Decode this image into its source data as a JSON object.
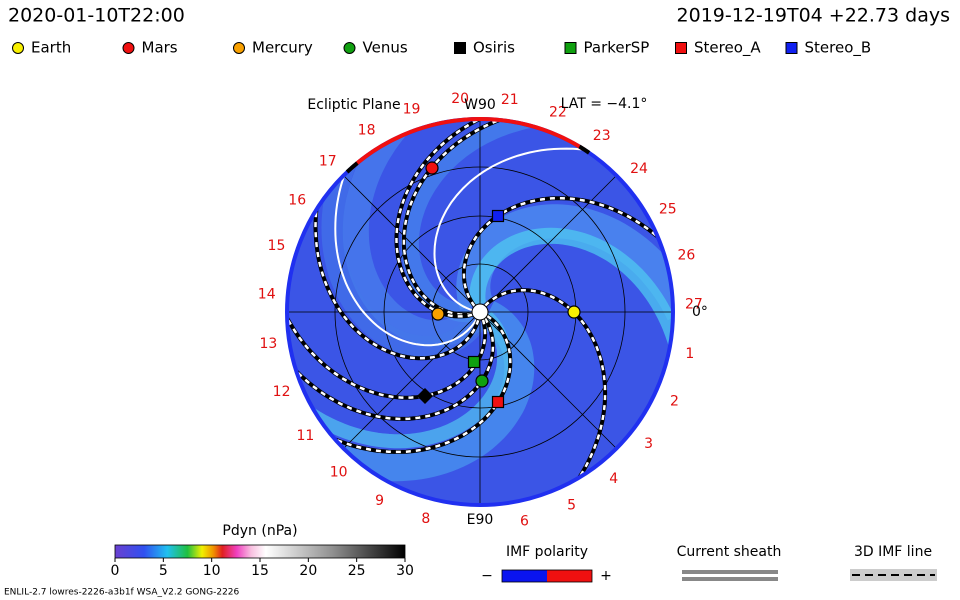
{
  "header": {
    "valid_time": "2020-01-10T22:00",
    "run_info": "2019-12-19T04 +22.73 days"
  },
  "legend": [
    "Earth",
    "Mars",
    "Mercury",
    "Venus",
    "Osiris",
    "ParkerSP",
    "Stereo_A",
    "Stereo_B"
  ],
  "plot": {
    "title": "Ecliptic Plane",
    "top_label": "W90",
    "lat": "LAT = −4.1°",
    "right_label": "0°",
    "bottom_label": "E90",
    "carrington": [
      1,
      2,
      3,
      4,
      5,
      6,
      8,
      9,
      10,
      11,
      12,
      13,
      14,
      15,
      16,
      17,
      18,
      19,
      20,
      21,
      22,
      23,
      24,
      25,
      26,
      27
    ]
  },
  "colorbar": {
    "title": "Pdyn (nPa)",
    "ticks": [
      0,
      5,
      10,
      15,
      20,
      25,
      30
    ]
  },
  "imf": {
    "title": "IMF polarity",
    "minus": "−",
    "plus": "+"
  },
  "sheath": {
    "title": "Current sheath"
  },
  "imf_line": {
    "title": "3D IMF line"
  },
  "footer": "ENLIL-2.7 lowres-2226-a3b1f WSA_V2.2 GONG-2226"
}
